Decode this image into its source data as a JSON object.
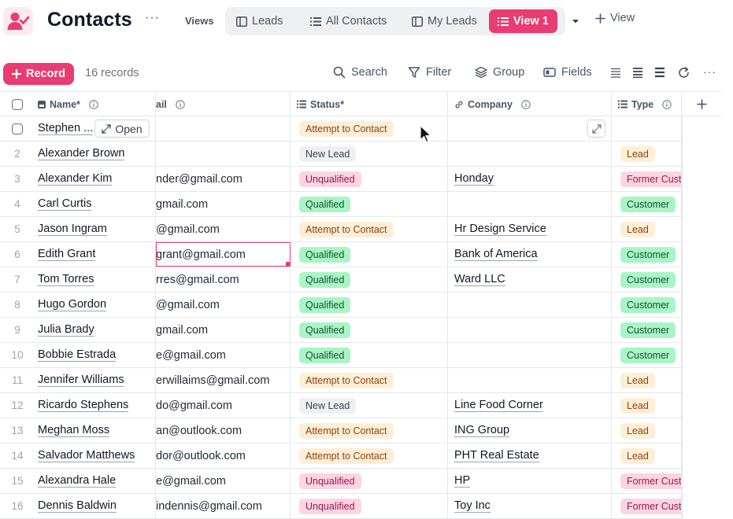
{
  "header": {
    "title": "Contacts",
    "views_label": "Views",
    "tabs": [
      {
        "label": "Leads",
        "icon": "grid-icon"
      },
      {
        "label": "All Contacts",
        "icon": "list-icon"
      },
      {
        "label": "My Leads",
        "icon": "grid-icon"
      },
      {
        "label": "View 1",
        "icon": "list-icon",
        "active": true
      }
    ],
    "add_view_label": "View",
    "colors": {
      "accent": "#e93c73"
    }
  },
  "toolbar": {
    "record_label": "Record",
    "record_count": "16 records",
    "search_label": "Search",
    "filter_label": "Filter",
    "group_label": "Group",
    "fields_label": "Fields"
  },
  "columns": {
    "name": "Name*",
    "email": "ail",
    "status": "Status*",
    "company": "Company",
    "type": "Type"
  },
  "first_row": {
    "name": "Stephen ...",
    "open_label": "Open",
    "status": "Attempt to Contact"
  },
  "rows": [
    {
      "idx": "2",
      "name": "Alexander Brown",
      "email": "",
      "status": "New Lead",
      "company": "",
      "type": "Lead"
    },
    {
      "idx": "3",
      "name": "Alexander Kim",
      "email": "nder@gmail.com",
      "status": "Unqualified",
      "company": "Honday",
      "type": "Former Cust"
    },
    {
      "idx": "4",
      "name": "Carl Curtis",
      "email": "gmail.com",
      "status": "Qualified",
      "company": "",
      "type": "Customer"
    },
    {
      "idx": "5",
      "name": "Jason Ingram",
      "email": "@gmail.com",
      "status": "Attempt to Contact",
      "company": "Hr Design Service",
      "type": "Lead"
    },
    {
      "idx": "6",
      "name": "Edith Grant",
      "email": "grant@gmail.com",
      "status": "Qualified",
      "company": "Bank of America",
      "type": "Customer"
    },
    {
      "idx": "7",
      "name": "Tom Torres",
      "email": "rres@gmail.com",
      "status": "Qualified",
      "company": "Ward LLC",
      "type": "Customer"
    },
    {
      "idx": "8",
      "name": "Hugo Gordon",
      "email": "@gmail.com",
      "status": "Qualified",
      "company": "",
      "type": "Customer"
    },
    {
      "idx": "9",
      "name": "Julia Brady",
      "email": "gmail.com",
      "status": "Qualified",
      "company": "",
      "type": "Customer"
    },
    {
      "idx": "10",
      "name": "Bobbie Estrada",
      "email": "e@gmail.com",
      "status": "Qualified",
      "company": "",
      "type": "Customer"
    },
    {
      "idx": "11",
      "name": "Jennifer Williams",
      "email": "erwillaims@gmail.com",
      "status": "Attempt to Contact",
      "company": "",
      "type": "Lead"
    },
    {
      "idx": "12",
      "name": "Ricardo Stephens",
      "email": "do@gmail.com",
      "status": "New Lead",
      "company": "Line Food Corner",
      "type": "Lead"
    },
    {
      "idx": "13",
      "name": "Meghan Moss",
      "email": "an@outlook.com",
      "status": "Attempt to Contact",
      "company": "ING Group",
      "type": "Lead"
    },
    {
      "idx": "14",
      "name": "Salvador Matthews",
      "email": "dor@outlook.com",
      "status": "Attempt to Contact",
      "company": "PHT Real Estate",
      "type": "Lead"
    },
    {
      "idx": "15",
      "name": "Alexandra Hale",
      "email": "e@gmail.com",
      "status": "Unqualified",
      "company": "HP",
      "type": "Former Cust"
    },
    {
      "idx": "16",
      "name": "Dennis Baldwin",
      "email": "indennis@gmail.com",
      "status": "Unqualified",
      "company": "Toy Inc",
      "type": "Former Cust"
    }
  ]
}
